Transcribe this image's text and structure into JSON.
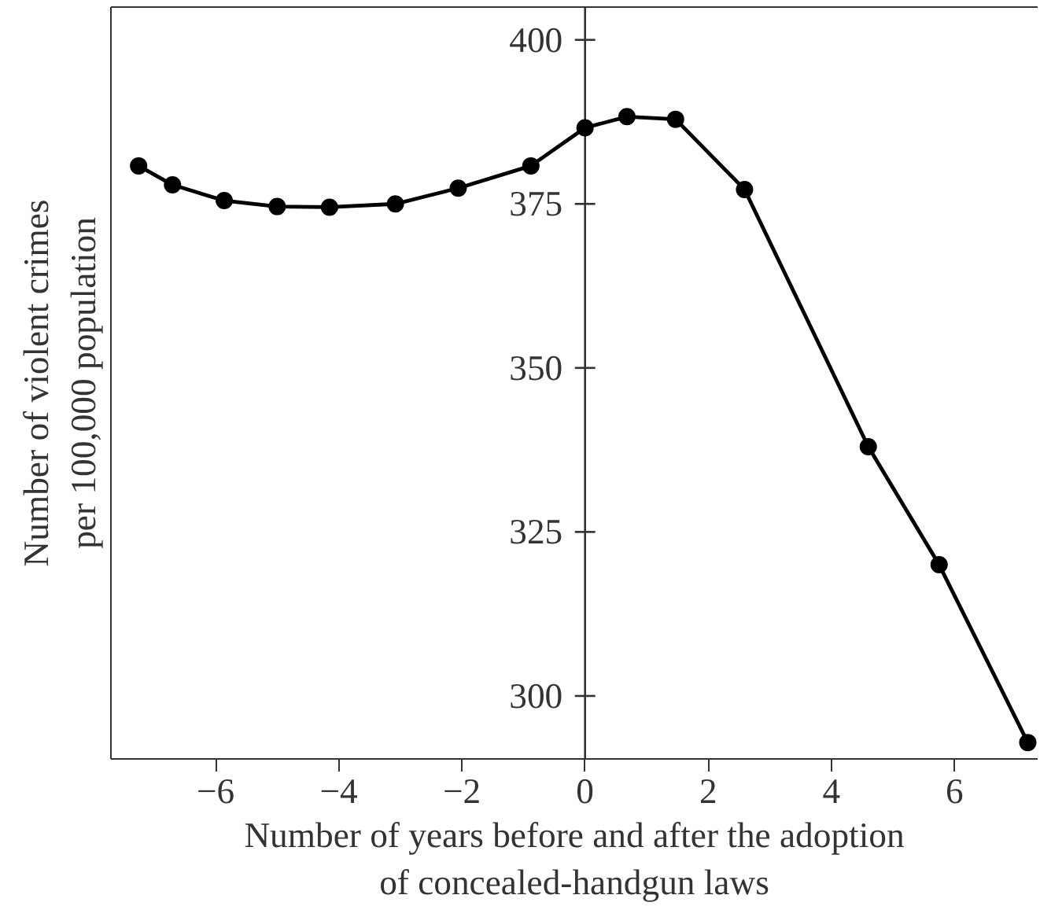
{
  "chart_data": {
    "type": "line",
    "xlabel": "Number of years before and after the adoption\nof concealed-handgun laws",
    "ylabel": "Number of violent crimes\nper 100,000 population",
    "x": [
      -7.25,
      -6.7,
      -5.86,
      -5.0,
      -4.15,
      -3.08,
      -2.06,
      -0.88,
      0,
      0.68,
      1.47,
      2.59,
      4.6,
      5.75,
      7.19
    ],
    "series": [
      {
        "color": "#000000",
        "values": [
          380.8,
          377.9,
          375.5,
          374.6,
          374.5,
          375.0,
          377.4,
          380.8,
          386.6,
          388.3,
          387.9,
          377.2,
          338,
          320,
          292.9
        ]
      }
    ],
    "xlim": [
      -7.7,
      7.35
    ],
    "ylim": [
      290.4,
      405
    ],
    "xticks": [
      {
        "value": -6,
        "label": "−6"
      },
      {
        "value": -4,
        "label": "−4"
      },
      {
        "value": -2,
        "label": "−2"
      },
      0,
      2,
      4,
      6
    ],
    "yticks": [
      300,
      325,
      350,
      375,
      400
    ],
    "marker": "circle",
    "line_style": "solid",
    "grid": false
  }
}
